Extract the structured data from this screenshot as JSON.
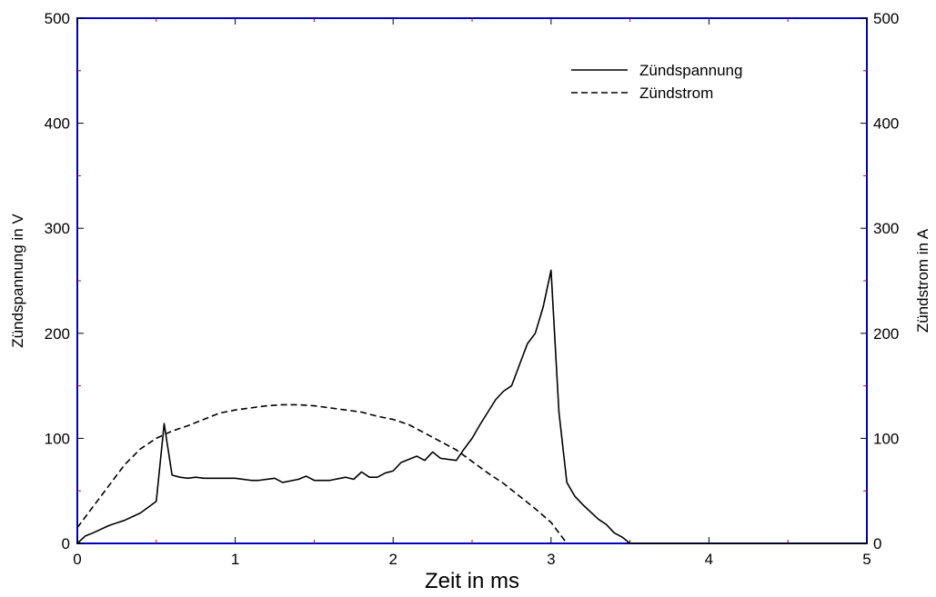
{
  "chart_data": {
    "type": "line",
    "title": "",
    "xlabel": "Zeit in ms",
    "ylabel_left": "Zündspannung in V",
    "ylabel_right": "Zündstrom in A",
    "xlim": [
      0,
      5
    ],
    "ylim_left": [
      0,
      500
    ],
    "ylim_right": [
      0,
      500
    ],
    "x_ticks": [
      "0",
      "1",
      "2",
      "3",
      "4",
      "5"
    ],
    "y_ticks_left": [
      "0",
      "100",
      "200",
      "300",
      "400",
      "500"
    ],
    "y_ticks_right": [
      "0",
      "100",
      "200",
      "300",
      "400",
      "500"
    ],
    "grid": false,
    "legend_position": "top-right",
    "frame_color": "#0000c0",
    "series": [
      {
        "name": "Zündspannung",
        "axis": "left",
        "style": "solid",
        "color": "#000000",
        "points": [
          [
            0,
            0
          ],
          [
            0.05,
            7
          ],
          [
            0.1,
            10
          ],
          [
            0.2,
            17
          ],
          [
            0.3,
            22
          ],
          [
            0.4,
            29
          ],
          [
            0.5,
            40
          ],
          [
            0.55,
            114
          ],
          [
            0.6,
            65
          ],
          [
            0.65,
            63
          ],
          [
            0.7,
            62
          ],
          [
            0.75,
            63
          ],
          [
            0.8,
            62
          ],
          [
            0.9,
            62
          ],
          [
            1.0,
            62
          ],
          [
            1.1,
            60
          ],
          [
            1.15,
            60
          ],
          [
            1.25,
            62
          ],
          [
            1.3,
            58
          ],
          [
            1.4,
            61
          ],
          [
            1.45,
            64
          ],
          [
            1.5,
            60
          ],
          [
            1.6,
            60
          ],
          [
            1.7,
            63
          ],
          [
            1.75,
            61
          ],
          [
            1.8,
            68
          ],
          [
            1.85,
            63
          ],
          [
            1.9,
            63
          ],
          [
            1.95,
            67
          ],
          [
            2.0,
            69
          ],
          [
            2.05,
            77
          ],
          [
            2.1,
            80
          ],
          [
            2.15,
            83
          ],
          [
            2.2,
            79
          ],
          [
            2.25,
            87
          ],
          [
            2.3,
            81
          ],
          [
            2.4,
            79
          ],
          [
            2.45,
            90
          ],
          [
            2.5,
            100
          ],
          [
            2.55,
            113
          ],
          [
            2.6,
            125
          ],
          [
            2.65,
            137
          ],
          [
            2.7,
            145
          ],
          [
            2.75,
            150
          ],
          [
            2.8,
            170
          ],
          [
            2.85,
            190
          ],
          [
            2.9,
            200
          ],
          [
            2.95,
            225
          ],
          [
            3.0,
            260
          ],
          [
            3.05,
            125
          ],
          [
            3.1,
            58
          ],
          [
            3.15,
            45
          ],
          [
            3.2,
            37
          ],
          [
            3.3,
            23
          ],
          [
            3.35,
            18
          ],
          [
            3.4,
            10
          ],
          [
            3.45,
            6
          ],
          [
            3.5,
            0
          ],
          [
            4.0,
            0
          ],
          [
            5.0,
            0
          ]
        ]
      },
      {
        "name": "Zündstrom",
        "axis": "right",
        "style": "dashed",
        "color": "#000000",
        "points": [
          [
            0,
            15
          ],
          [
            0.1,
            35
          ],
          [
            0.2,
            55
          ],
          [
            0.3,
            75
          ],
          [
            0.4,
            90
          ],
          [
            0.5,
            100
          ],
          [
            0.6,
            107
          ],
          [
            0.7,
            112
          ],
          [
            0.8,
            118
          ],
          [
            0.9,
            124
          ],
          [
            1.0,
            127
          ],
          [
            1.1,
            129
          ],
          [
            1.2,
            131
          ],
          [
            1.3,
            132
          ],
          [
            1.4,
            132
          ],
          [
            1.5,
            131
          ],
          [
            1.6,
            129
          ],
          [
            1.7,
            127
          ],
          [
            1.8,
            125
          ],
          [
            1.9,
            121
          ],
          [
            2.0,
            118
          ],
          [
            2.1,
            113
          ],
          [
            2.2,
            105
          ],
          [
            2.3,
            97
          ],
          [
            2.4,
            89
          ],
          [
            2.5,
            78
          ],
          [
            2.6,
            67
          ],
          [
            2.7,
            57
          ],
          [
            2.8,
            45
          ],
          [
            2.9,
            33
          ],
          [
            3.0,
            20
          ],
          [
            3.05,
            10
          ],
          [
            3.1,
            0
          ]
        ]
      }
    ]
  }
}
